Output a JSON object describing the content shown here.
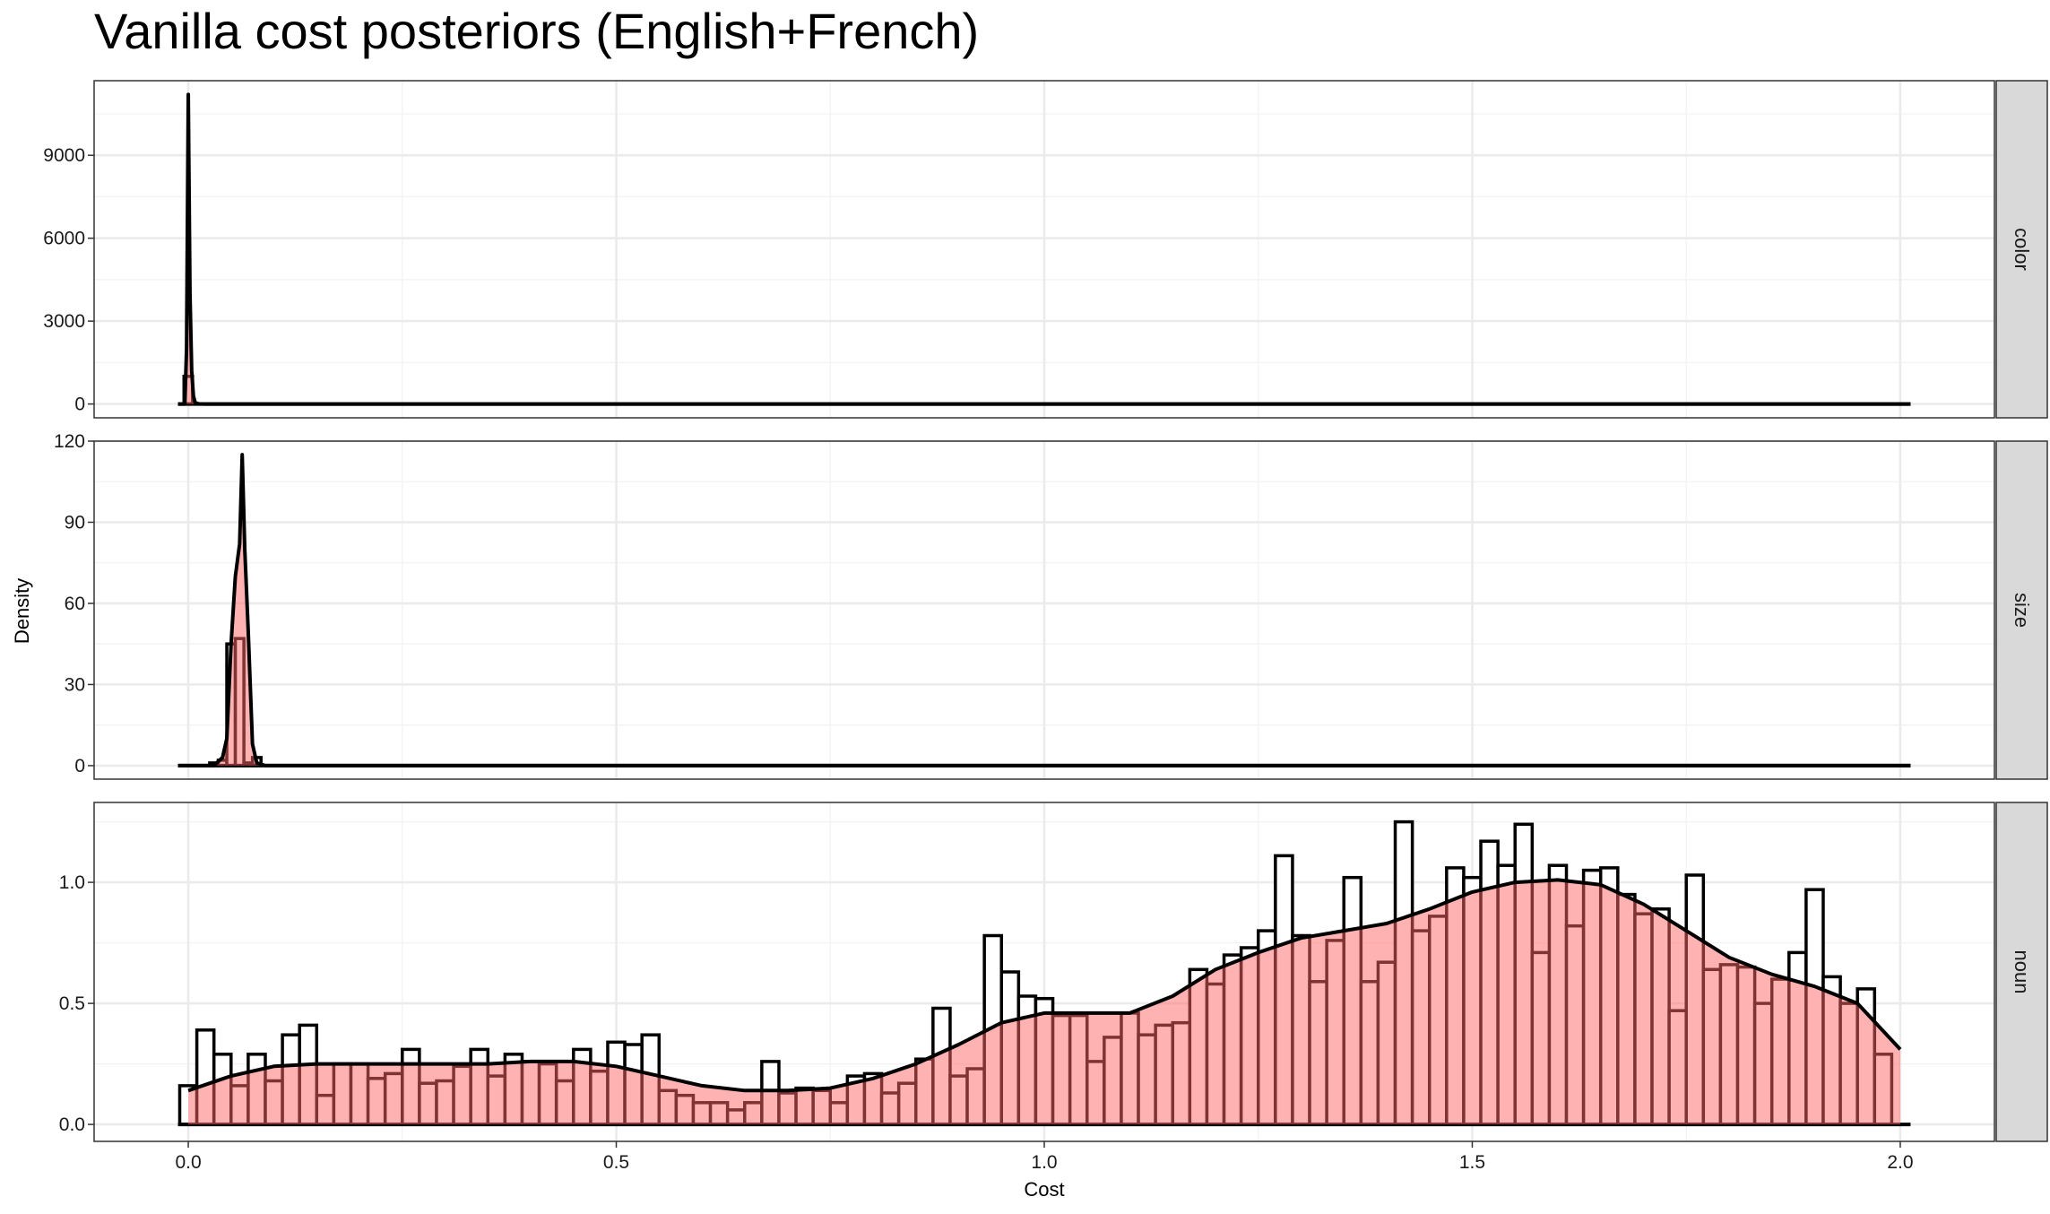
{
  "title": "Vanilla cost posteriors (English+French)",
  "chart_data": {
    "type": "histogram+density",
    "title": "Vanilla cost posteriors (English+French)",
    "xlabel": "Cost",
    "ylabel": "Density",
    "xlim": [
      -0.11,
      2.11
    ],
    "x_ticks": [
      0.0,
      0.5,
      1.0,
      1.5,
      2.0
    ],
    "x_tick_labels": [
      "0.0",
      "0.5",
      "1.0",
      "1.5",
      "2.0"
    ],
    "fill_color": "#ff6666",
    "fill_opacity": 0.5,
    "outline_color": "#000000",
    "grid": true,
    "panels": [
      {
        "strip_label": "color",
        "ylim": [
          -500,
          11700
        ],
        "y_ticks": [
          0,
          3000,
          6000,
          9000
        ],
        "y_tick_labels": [
          "0",
          "3000",
          "6000",
          "9000"
        ],
        "hist": {
          "x": [
            -0.01,
            0.0,
            0.01
          ],
          "y": [
            0,
            1000,
            0
          ]
        },
        "density": {
          "x": [
            -0.012,
            -0.004,
            -0.002,
            0.0,
            0.002,
            0.004,
            0.006,
            0.008,
            0.012,
            0.02,
            0.05,
            2.012
          ],
          "y": [
            0,
            0,
            2000,
            11200,
            4000,
            1200,
            300,
            50,
            5,
            0,
            0,
            0
          ]
        }
      },
      {
        "strip_label": "size",
        "ylim": [
          -5,
          120
        ],
        "y_ticks": [
          0,
          30,
          60,
          90,
          120
        ],
        "y_tick_labels": [
          "0",
          "30",
          "60",
          "90",
          "120"
        ],
        "hist": {
          "x": [
            0.03,
            0.04,
            0.05,
            0.06,
            0.07,
            0.08,
            0.09
          ],
          "y": [
            1,
            2,
            45,
            47,
            1,
            3,
            0
          ]
        },
        "density": {
          "x": [
            -0.012,
            0.03,
            0.04,
            0.045,
            0.05,
            0.055,
            0.06,
            0.063,
            0.066,
            0.07,
            0.075,
            0.08,
            0.09,
            2.012
          ],
          "y": [
            0,
            0,
            3,
            10,
            45,
            70,
            82,
            115,
            80,
            50,
            8,
            1,
            0,
            0
          ]
        }
      },
      {
        "strip_label": "noun",
        "ylim": [
          -0.07,
          1.33
        ],
        "y_ticks": [
          0.0,
          0.5,
          1.0
        ],
        "y_tick_labels": [
          "0.0",
          "0.5",
          "1.0"
        ],
        "hist": {
          "bin_width": 0.02,
          "x": [
            0.0,
            0.02,
            0.04,
            0.06,
            0.08,
            0.1,
            0.12,
            0.14,
            0.16,
            0.18,
            0.2,
            0.22,
            0.24,
            0.26,
            0.28,
            0.3,
            0.32,
            0.34,
            0.36,
            0.38,
            0.4,
            0.42,
            0.44,
            0.46,
            0.48,
            0.5,
            0.52,
            0.54,
            0.56,
            0.58,
            0.6,
            0.62,
            0.64,
            0.66,
            0.68,
            0.7,
            0.72,
            0.74,
            0.76,
            0.78,
            0.8,
            0.82,
            0.84,
            0.86,
            0.88,
            0.9,
            0.92,
            0.94,
            0.96,
            0.98,
            1.0,
            1.02,
            1.04,
            1.06,
            1.08,
            1.1,
            1.12,
            1.14,
            1.16,
            1.18,
            1.2,
            1.22,
            1.24,
            1.26,
            1.28,
            1.3,
            1.32,
            1.34,
            1.36,
            1.38,
            1.4,
            1.42,
            1.44,
            1.46,
            1.48,
            1.5,
            1.52,
            1.54,
            1.56,
            1.58,
            1.6,
            1.62,
            1.64,
            1.66,
            1.68,
            1.7,
            1.72,
            1.74,
            1.76,
            1.78,
            1.8,
            1.82,
            1.84,
            1.86,
            1.88,
            1.9,
            1.92,
            1.94,
            1.96,
            1.98,
            2.0
          ],
          "y": [
            0.16,
            0.39,
            0.29,
            0.16,
            0.29,
            0.18,
            0.37,
            0.41,
            0.12,
            0.25,
            0.25,
            0.19,
            0.21,
            0.31,
            0.17,
            0.18,
            0.24,
            0.31,
            0.2,
            0.29,
            0.26,
            0.25,
            0.18,
            0.31,
            0.22,
            0.34,
            0.33,
            0.37,
            0.14,
            0.12,
            0.09,
            0.09,
            0.06,
            0.09,
            0.26,
            0.13,
            0.15,
            0.14,
            0.09,
            0.2,
            0.21,
            0.13,
            0.17,
            0.27,
            0.48,
            0.2,
            0.23,
            0.78,
            0.63,
            0.53,
            0.52,
            0.45,
            0.45,
            0.26,
            0.36,
            0.46,
            0.37,
            0.41,
            0.42,
            0.64,
            0.58,
            0.7,
            0.73,
            0.8,
            1.11,
            0.78,
            0.59,
            0.76,
            1.02,
            0.59,
            0.67,
            1.25,
            0.8,
            0.86,
            1.06,
            1.02,
            1.17,
            1.07,
            1.24,
            0.71,
            1.07,
            0.82,
            1.05,
            1.06,
            0.95,
            0.87,
            0.89,
            0.47,
            1.03,
            0.64,
            0.66,
            0.65,
            0.5,
            0.6,
            0.71,
            0.97,
            0.61,
            0.5,
            0.56,
            0.29,
            0.0
          ]
        },
        "density": {
          "x": [
            0.0,
            0.05,
            0.1,
            0.15,
            0.2,
            0.25,
            0.3,
            0.35,
            0.4,
            0.45,
            0.5,
            0.55,
            0.6,
            0.65,
            0.7,
            0.75,
            0.8,
            0.85,
            0.9,
            0.95,
            1.0,
            1.05,
            1.1,
            1.15,
            1.2,
            1.25,
            1.3,
            1.35,
            1.4,
            1.45,
            1.5,
            1.55,
            1.6,
            1.65,
            1.7,
            1.75,
            1.8,
            1.85,
            1.9,
            1.95,
            2.0
          ],
          "y": [
            0.14,
            0.2,
            0.24,
            0.25,
            0.25,
            0.25,
            0.25,
            0.25,
            0.26,
            0.26,
            0.24,
            0.2,
            0.16,
            0.14,
            0.14,
            0.15,
            0.19,
            0.25,
            0.33,
            0.42,
            0.46,
            0.46,
            0.46,
            0.53,
            0.64,
            0.71,
            0.77,
            0.8,
            0.83,
            0.89,
            0.96,
            1.0,
            1.01,
            0.99,
            0.91,
            0.8,
            0.69,
            0.62,
            0.57,
            0.5,
            0.31
          ]
        }
      }
    ]
  }
}
